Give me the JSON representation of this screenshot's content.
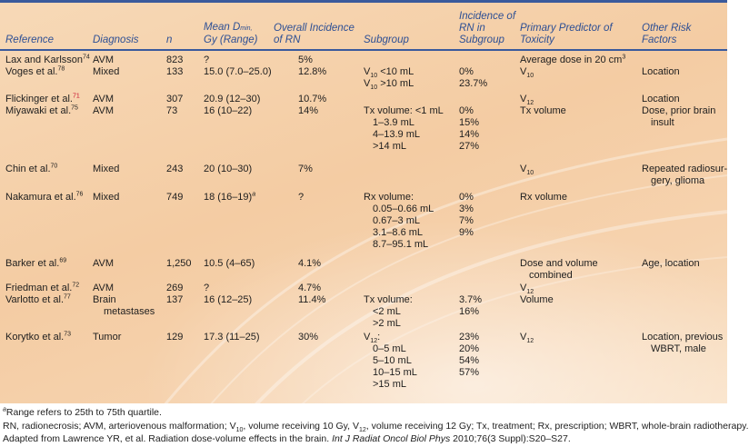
{
  "header": {
    "reference": "Reference",
    "diagnosis": "Diagnosis",
    "n": "n",
    "mean_dmin_line1_prefix": "Mean D",
    "mean_dmin_sub": "min,",
    "mean_dmin_line2": "Gy (Range)",
    "overall_line1": "Overall Incidence",
    "overall_line2": "of RN",
    "subgroup": "Subgroup",
    "incidence_line1": "Incidence of",
    "incidence_line2": "RN in",
    "incidence_line3": "Subgroup",
    "predictor_line1": "Primary Predictor of",
    "predictor_line2": "Toxicity",
    "other": "Other Risk Factors"
  },
  "rows": [
    {
      "reference": "Lax and Karlsson",
      "ref_num": "74",
      "diagnosis": "AVM",
      "n": "823",
      "mean_dmin": "?",
      "overall": "5%",
      "predictor": "Average dose in 20 cm",
      "predictor_sup": "3"
    },
    {
      "reference": "Voges et al.",
      "ref_num": "78",
      "diagnosis": "Mixed",
      "n": "133",
      "mean_dmin": "15.0 (7.0–25.0)",
      "overall": "12.8%",
      "subgroups": [
        {
          "pre": "V",
          "sub": "10",
          "post": " <10 mL",
          "incidence": "0%"
        },
        {
          "pre": "V",
          "sub": "10",
          "post": " >10 mL",
          "incidence": "23.7%"
        }
      ],
      "predictor": "V",
      "predictor_sub": "10",
      "other": "Location"
    },
    {
      "reference": "Flickinger et al.",
      "ref_num": "71",
      "diagnosis": "AVM",
      "n": "307",
      "mean_dmin": "20.9 (12–30)",
      "overall": "10.7%",
      "predictor": "V",
      "predictor_sub": "12",
      "other": "Location"
    },
    {
      "reference": "Miyawaki et al.",
      "ref_num": "75",
      "diagnosis": "AVM",
      "n": "73",
      "mean_dmin": "16 (10–22)",
      "overall": "14%",
      "subgroups": [
        {
          "text": "Tx volume: <1 mL",
          "incidence": "0%"
        },
        {
          "text": "1–3.9 mL",
          "incidence": "15%"
        },
        {
          "text": "4–13.9 mL",
          "incidence": "14%"
        },
        {
          "text": ">14 mL",
          "incidence": "27%"
        }
      ],
      "predictor": "Tx volume",
      "other_line1": "Dose, prior brain",
      "other_line2": "insult"
    },
    {
      "reference": "Chin et al.",
      "ref_num": "70",
      "diagnosis": "Mixed",
      "n": "243",
      "mean_dmin": "20 (10–30)",
      "overall": "7%",
      "predictor": "V",
      "predictor_sub": "10",
      "other_line1": "Repeated radiosur-",
      "other_line2": "gery, glioma"
    },
    {
      "reference": "Nakamura et al.",
      "ref_num": "76",
      "diagnosis": "Mixed",
      "n": "749",
      "mean_dmin": "18 (16–19)",
      "mean_dmin_sup": "a",
      "overall": "?",
      "subgroups": [
        {
          "text": "Rx volume:",
          "incidence": "0%"
        },
        {
          "text": "0.05–0.66 mL",
          "incidence": "3%"
        },
        {
          "text": "0.67–3 mL",
          "incidence": "7%"
        },
        {
          "text": "3.1–8.6 mL",
          "incidence": "9%"
        },
        {
          "text": "8.7–95.1 mL",
          "incidence": ""
        }
      ],
      "predictor": "Rx volume"
    },
    {
      "reference": "Barker et al.",
      "ref_num": "69",
      "diagnosis": "AVM",
      "n": "1,250",
      "mean_dmin": "10.5 (4–65)",
      "overall": "4.1%",
      "predictor_line1": "Dose and volume",
      "predictor_line2": "combined",
      "other": "Age, location"
    },
    {
      "reference": "Friedman et al.",
      "ref_num": "72",
      "diagnosis": "AVM",
      "n": "269",
      "mean_dmin": "?",
      "overall": "4.7%",
      "predictor": "V",
      "predictor_sub": "12"
    },
    {
      "reference": "Varlotto et al.",
      "ref_num": "77",
      "diagnosis_line1": "Brain",
      "diagnosis_line2": "metastases",
      "n": "137",
      "mean_dmin": "16 (12–25)",
      "overall": "11.4%",
      "subgroups": [
        {
          "text": "Tx volume:",
          "incidence": "3.7%"
        },
        {
          "text": "<2 mL",
          "incidence": "16%"
        },
        {
          "text": ">2 mL",
          "incidence": ""
        }
      ],
      "predictor": "Volume"
    },
    {
      "reference": "Korytko et al.",
      "ref_num": "73",
      "diagnosis": "Tumor",
      "n": "129",
      "mean_dmin": "17.3 (11–25)",
      "overall": "30%",
      "subgroups": [
        {
          "pre": "V",
          "sub": "12",
          "post": ":",
          "incidence": "23%"
        },
        {
          "text": "0–5 mL",
          "incidence": "20%"
        },
        {
          "text": "5–10 mL",
          "incidence": "54%"
        },
        {
          "text": "10–15 mL",
          "incidence": "57%"
        },
        {
          "text": ">15 mL",
          "incidence": ""
        }
      ],
      "predictor": "V",
      "predictor_sub": "12",
      "other_line1": "Location, previous",
      "other_line2": "WBRT, male"
    }
  ],
  "footnotes": {
    "a_mark": "a",
    "a_text": "Range refers to 25th to 75th quartile.",
    "abbrev_1": "RN, radionecrosis; AVM, arteriovenous malformation; V",
    "abbrev_sub1": "10",
    "abbrev_2": ", volume receiving 10 Gy, V",
    "abbrev_sub2": "12",
    "abbrev_3": ", volume receiving 12 Gy; Tx, treatment; Rx, prescription; WBRT, whole-brain radiotherapy.",
    "source_1": "Adapted from Lawrence YR, et al. Radiation dose-volume effects in the brain. ",
    "source_journal": "Int J Radiat Oncol Biol Phys",
    "source_2": " 2010;76(3 Suppl):S20–S27."
  },
  "colors": {
    "header_text": "#2d4f94",
    "rule": "#3a5a9c",
    "panel_bg": "#f4cca3",
    "ref_highlight": "#c8102e"
  }
}
